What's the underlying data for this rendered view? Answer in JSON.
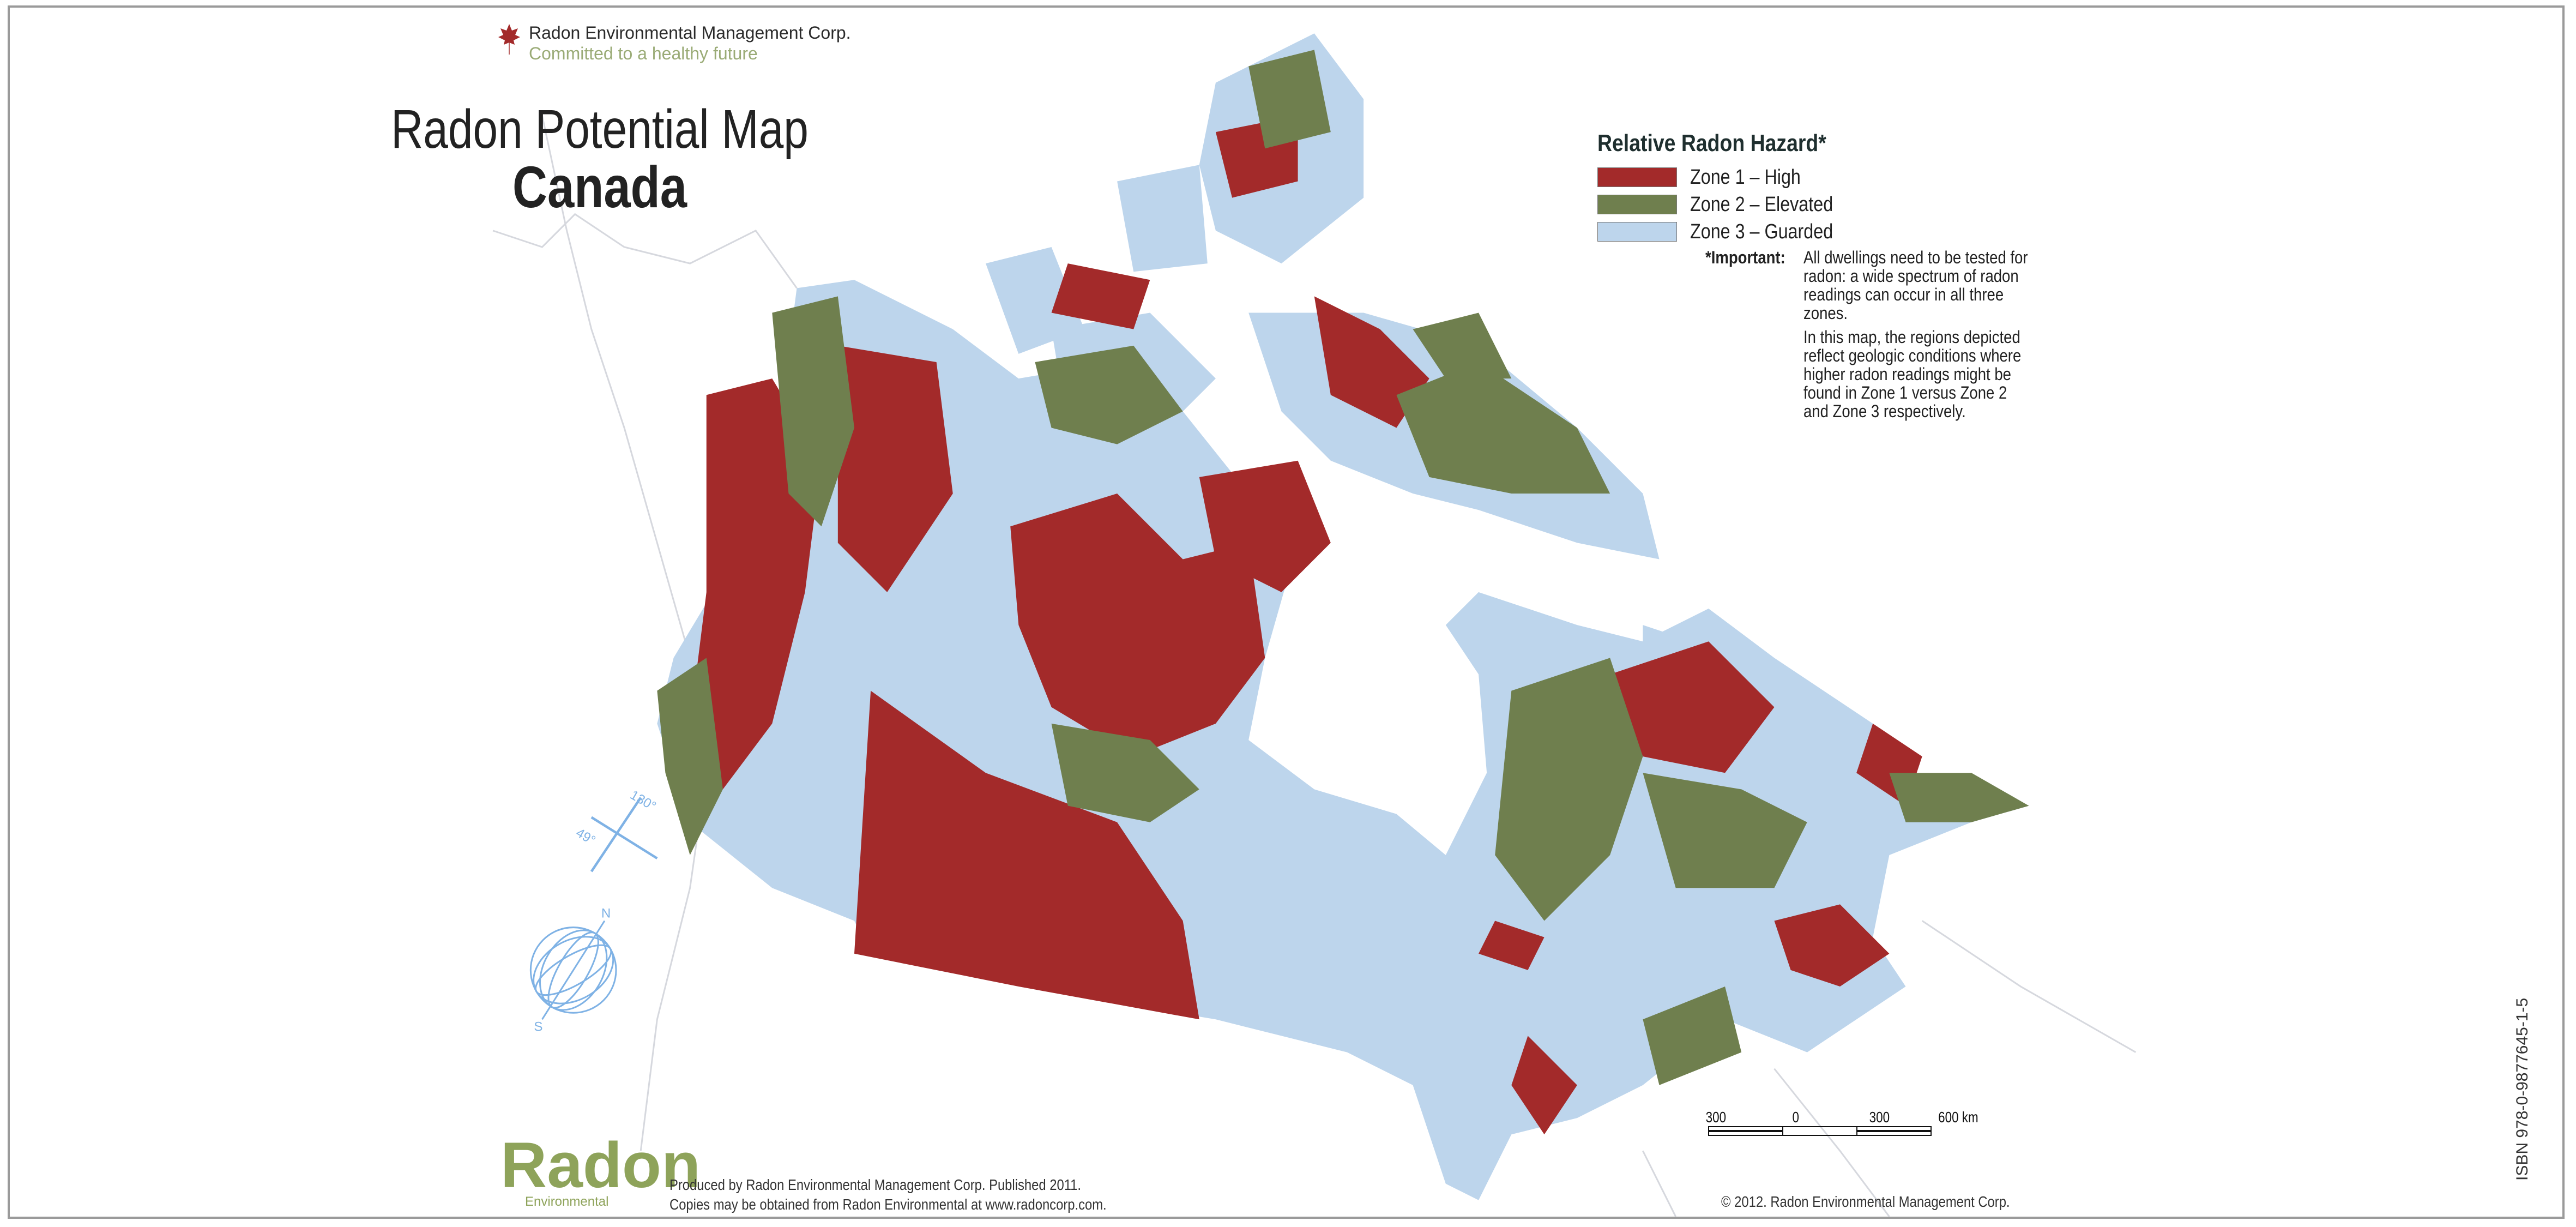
{
  "header": {
    "company": "Radon Environmental Management Corp.",
    "tagline": "Committed to a healthy future",
    "title_line1": "Radon Potential Map",
    "title_line2": "Canada"
  },
  "legend": {
    "title": "Relative Radon Hazard*",
    "items": [
      {
        "label": "Zone 1 – High",
        "color": "#a32a2a"
      },
      {
        "label": "Zone 2 – Elevated",
        "color": "#6f7f4e"
      },
      {
        "label": "Zone 3 – Guarded",
        "color": "#bdd5ec"
      }
    ]
  },
  "note": {
    "heading": "*Important:",
    "paragraph1": "All dwellings need to be tested for radon:  a wide spectrum of radon readings can occur in all three zones.",
    "paragraph2": "In this map, the regions depicted reflect geologic conditions where higher radon readings might be found in Zone 1 versus Zone 2 and Zone 3 respectively."
  },
  "graticule": {
    "lat_label": "49°",
    "lon_label": "130°",
    "north": "N",
    "south": "S"
  },
  "scale_bar": {
    "labels": [
      "300",
      "0",
      "300",
      "600 km"
    ]
  },
  "footer": {
    "logo_text": "Radon",
    "logo_subtext": "Environmental",
    "produced": "Produced by Radon Environmental Management Corp.  Published 2011.",
    "copies": "Copies may be obtained from Radon Environmental at www.radoncorp.com.",
    "copyright": "© 2012. Radon Environmental Management Corp.",
    "isbn": "ISBN 978-0-9877645-1-5"
  },
  "colors": {
    "zone1": "#a32a2a",
    "zone2": "#6f7f4e",
    "zone3": "#bdd5ec",
    "graticule": "#7fb2e5"
  }
}
